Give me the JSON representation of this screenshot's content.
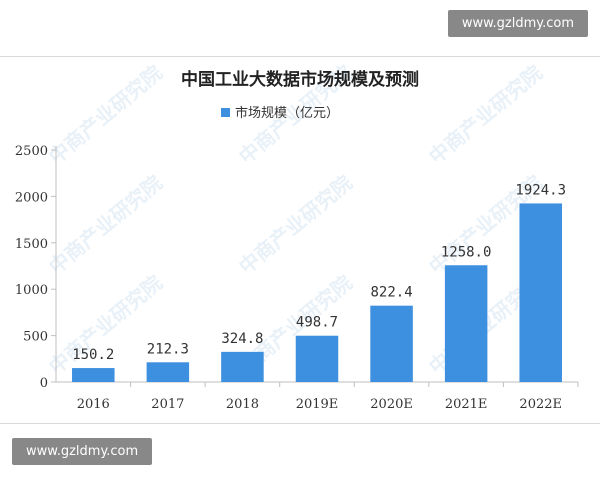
{
  "watermark": {
    "site_top": "www.gzldmy.com",
    "site_bottom": "www.gzldmy.com",
    "background_text": "中商产业研究院"
  },
  "chart_data": {
    "type": "bar",
    "title": "中国工业大数据市场规模及预测",
    "categories": [
      "2016",
      "2017",
      "2018",
      "2019E",
      "2020E",
      "2021E",
      "2022E"
    ],
    "series": [
      {
        "name": "市场规模（亿元）",
        "values": [
          150.2,
          212.3,
          324.8,
          498.7,
          822.4,
          1258.0,
          1924.3
        ],
        "labels": [
          "150.2",
          "212.3",
          "324.8",
          "498.7",
          "822.4",
          "1258.0",
          "1924.3"
        ]
      }
    ],
    "ylim": [
      0,
      2500
    ],
    "yticks": [
      0,
      500,
      1000,
      1500,
      2000,
      2500
    ],
    "xlabel": "",
    "ylabel": "",
    "grid": false,
    "legend_position": "top-center",
    "bar_color": "#3d8fe0"
  }
}
